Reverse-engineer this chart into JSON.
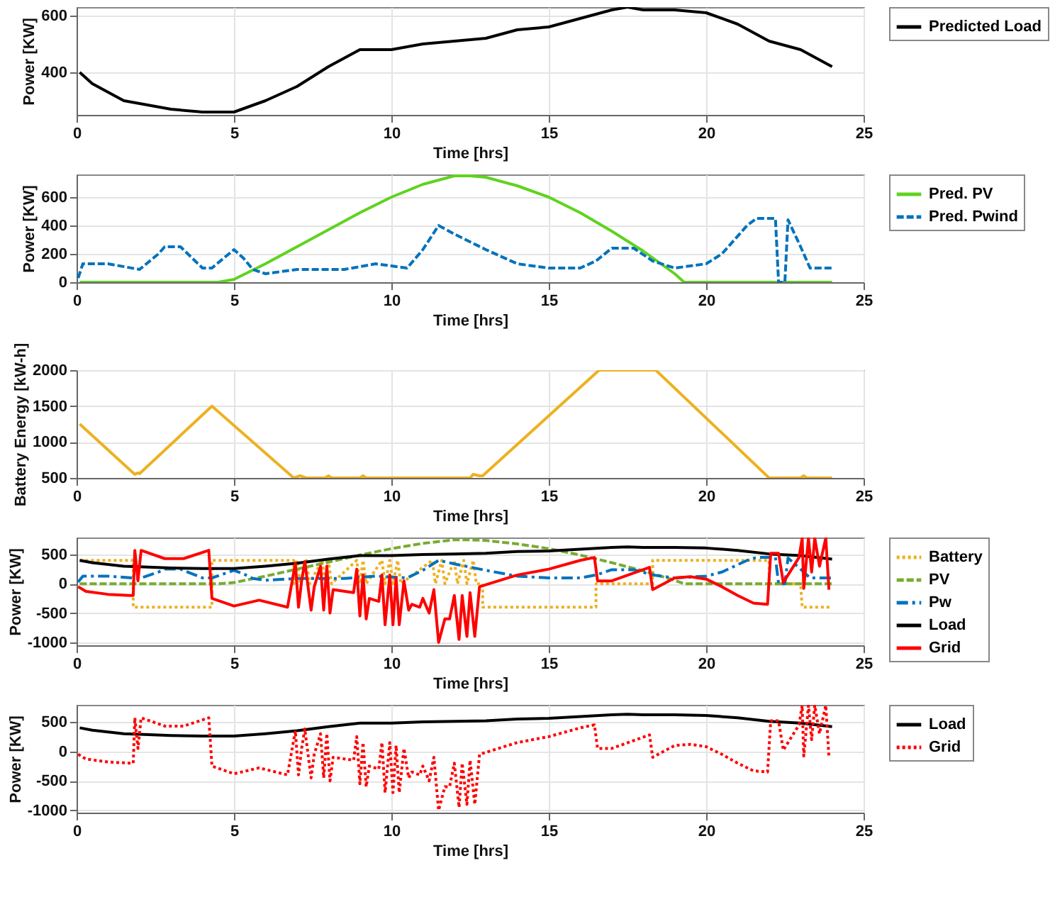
{
  "chart_data": [
    {
      "type": "line",
      "xlabel": "Time [hrs]",
      "ylabel": "Power [KW]",
      "xlim": [
        0,
        25
      ],
      "xticks": [
        0,
        5,
        10,
        15,
        20,
        25
      ],
      "ylim": [
        250,
        630
      ],
      "yticks": [
        400,
        600
      ],
      "grid": true,
      "legend": "right",
      "series": [
        {
          "name": "Predicted Load",
          "color": "#000000",
          "line_style": "solid",
          "x": [
            0.1,
            0.5,
            1,
            1.5,
            2,
            3,
            4,
            4.5,
            5,
            6,
            7,
            8,
            9,
            9.5,
            10,
            11,
            12,
            13,
            14,
            15,
            16,
            17,
            17.5,
            18,
            19,
            20,
            21,
            22,
            23,
            24
          ],
          "values": [
            400,
            360,
            330,
            300,
            290,
            270,
            260,
            260,
            260,
            300,
            350,
            420,
            480,
            480,
            480,
            500,
            510,
            520,
            550,
            560,
            590,
            620,
            630,
            620,
            620,
            610,
            570,
            510,
            480,
            420
          ]
        }
      ]
    },
    {
      "type": "line",
      "xlabel": "Time [hrs]",
      "ylabel": "Power [KW]",
      "xlim": [
        0,
        25
      ],
      "xticks": [
        0,
        5,
        10,
        15,
        20,
        25
      ],
      "ylim": [
        0,
        760
      ],
      "yticks": [
        0,
        200,
        400,
        600
      ],
      "grid": true,
      "legend": "right",
      "series": [
        {
          "name": "Pred. PV",
          "color": "#5fd31f",
          "line_style": "solid",
          "x": [
            0.1,
            4.5,
            5,
            6,
            7,
            8,
            9,
            10,
            11,
            12,
            12.5,
            13,
            14,
            15,
            16,
            17,
            18,
            19,
            19.3,
            24
          ],
          "values": [
            0,
            0,
            20,
            130,
            250,
            370,
            490,
            600,
            690,
            750,
            750,
            740,
            680,
            600,
            490,
            360,
            220,
            60,
            0,
            0
          ]
        },
        {
          "name": "Pred. Pwind",
          "color": "#0072bd",
          "line_style": "dashed",
          "x": [
            0.05,
            0.2,
            1,
            2,
            2.6,
            2.8,
            3.3,
            4,
            4.3,
            5,
            5.3,
            5.6,
            6,
            7,
            8.5,
            9.5,
            10.5,
            11,
            11.5,
            12,
            13,
            14,
            15,
            16,
            16.5,
            17,
            17.7,
            18.3,
            19,
            20,
            20.5,
            21.3,
            21.6,
            22.2,
            22.3,
            22.5,
            22.6,
            23,
            23.3,
            24
          ],
          "values": [
            30,
            130,
            130,
            90,
            200,
            250,
            250,
            100,
            100,
            230,
            170,
            90,
            60,
            90,
            90,
            130,
            100,
            230,
            400,
            340,
            230,
            130,
            100,
            100,
            150,
            240,
            240,
            150,
            100,
            130,
            200,
            400,
            450,
            450,
            0,
            0,
            440,
            250,
            100,
            100
          ]
        }
      ]
    },
    {
      "type": "line",
      "xlabel": "Time [hrs]",
      "ylabel": "Battery Energy [kW-h]",
      "xlim": [
        0,
        25
      ],
      "xticks": [
        0,
        5,
        10,
        15,
        20,
        25
      ],
      "ylim": [
        500,
        2000
      ],
      "yticks": [
        500,
        1000,
        1500,
        2000
      ],
      "grid": true,
      "series": [
        {
          "color": "#edb120",
          "line_style": "solid",
          "x": [
            0.1,
            1.85,
            1.95,
            2.0,
            4.3,
            6.9,
            7.1,
            7.3,
            7.9,
            8.0,
            8.1,
            9.0,
            9.1,
            9.2,
            12.5,
            12.6,
            12.8,
            12.9,
            16.6,
            18.4,
            22,
            23,
            23.1,
            23.2,
            24
          ],
          "values": [
            1250,
            550,
            570,
            560,
            1500,
            500,
            530,
            500,
            500,
            530,
            500,
            500,
            530,
            500,
            500,
            550,
            530,
            530,
            2000,
            2000,
            500,
            500,
            530,
            500,
            500
          ]
        }
      ]
    },
    {
      "type": "line",
      "xlabel": "Time [hrs]",
      "ylabel": "Power [KW]",
      "xlim": [
        0,
        25
      ],
      "xticks": [
        0,
        5,
        10,
        15,
        20,
        25
      ],
      "ylim": [
        -1050,
        790
      ],
      "yticks": [
        -1000,
        -500,
        0,
        500
      ],
      "grid": true,
      "legend": "right",
      "series": [
        {
          "name": "Battery",
          "color": "#edb120",
          "line_style": "dotted",
          "x": [
            0.1,
            1.8,
            1.8,
            4.3,
            4.3,
            6.9,
            6.9,
            7.0,
            7.1,
            7.3,
            7.4,
            7.8,
            7.9,
            8.0,
            8.1,
            8.9,
            9.0,
            9.1,
            9.2,
            9.7,
            9.8,
            9.95,
            10.05,
            10.2,
            10.3,
            11.3,
            11.4,
            11.6,
            11.7,
            12.0,
            12.1,
            12.3,
            12.4,
            12.6,
            12.7,
            12.9,
            12.9,
            16.5,
            16.5,
            18.3,
            18.3,
            22,
            22,
            23,
            23.05,
            24
          ],
          "values": [
            400,
            400,
            -400,
            -400,
            400,
            400,
            0,
            400,
            0,
            400,
            0,
            400,
            0,
            400,
            0,
            400,
            0,
            400,
            0,
            400,
            0,
            400,
            0,
            400,
            0,
            400,
            0,
            400,
            0,
            400,
            0,
            400,
            0,
            400,
            0,
            0,
            -400,
            -400,
            0,
            0,
            400,
            400,
            0,
            0,
            -400,
            -400
          ]
        },
        {
          "name": "PV",
          "color": "#77ac30",
          "line_style": "dashed",
          "x": [
            0.1,
            4.5,
            5,
            6,
            7,
            8,
            9,
            10,
            11,
            12,
            12.5,
            13,
            14,
            15,
            16,
            17,
            18,
            19,
            19.3,
            24
          ],
          "values": [
            0,
            0,
            20,
            130,
            250,
            370,
            490,
            600,
            690,
            750,
            750,
            740,
            680,
            600,
            490,
            360,
            220,
            60,
            0,
            0
          ]
        },
        {
          "name": "Pw",
          "color": "#0072bd",
          "line_style": "dashdot",
          "x": [
            0.05,
            0.2,
            1,
            2,
            2.6,
            2.8,
            3.3,
            4,
            4.3,
            5,
            5.3,
            5.6,
            6,
            7,
            8.5,
            9.5,
            10.5,
            11,
            11.5,
            12,
            13,
            14,
            15,
            16,
            16.5,
            17,
            17.7,
            18.3,
            19,
            20,
            20.5,
            21.3,
            21.6,
            22.2,
            22.3,
            22.5,
            22.6,
            23,
            23.3,
            24
          ],
          "values": [
            30,
            130,
            130,
            90,
            200,
            250,
            250,
            100,
            100,
            230,
            170,
            90,
            60,
            90,
            90,
            130,
            100,
            230,
            400,
            340,
            230,
            130,
            100,
            100,
            150,
            240,
            240,
            150,
            100,
            130,
            200,
            400,
            450,
            450,
            0,
            0,
            440,
            250,
            100,
            100
          ]
        },
        {
          "name": "Load",
          "color": "#000000",
          "line_style": "solid",
          "x": [
            0.1,
            0.5,
            1,
            1.5,
            2,
            3,
            4,
            4.5,
            5,
            6,
            7,
            8,
            9,
            9.5,
            10,
            11,
            12,
            13,
            14,
            15,
            16,
            17,
            17.5,
            18,
            19,
            20,
            21,
            22,
            23,
            24
          ],
          "values": [
            400,
            360,
            330,
            300,
            290,
            270,
            260,
            260,
            260,
            300,
            350,
            420,
            480,
            480,
            480,
            500,
            510,
            520,
            550,
            560,
            590,
            620,
            630,
            620,
            620,
            610,
            570,
            510,
            480,
            420
          ]
        },
        {
          "name": "Grid",
          "color": "#ff0000",
          "line_style": "solid",
          "x": [
            0.05,
            0.3,
            1,
            1.7,
            1.8,
            1.85,
            1.95,
            2.05,
            2.8,
            3.4,
            4.2,
            4.3,
            5,
            5.8,
            6.7,
            6.95,
            7.05,
            7.15,
            7.25,
            7.45,
            7.55,
            7.75,
            7.85,
            7.95,
            8.05,
            8.15,
            8.8,
            8.9,
            9.0,
            9.1,
            9.2,
            9.3,
            9.6,
            9.7,
            9.8,
            9.95,
            10.05,
            10.15,
            10.25,
            10.4,
            10.55,
            10.65,
            10.9,
            11.0,
            11.2,
            11.35,
            11.5,
            11.7,
            11.85,
            12.0,
            12.15,
            12.25,
            12.4,
            12.5,
            12.65,
            12.8,
            14,
            15,
            16,
            16.45,
            16.55,
            17,
            18.2,
            18.3,
            19,
            19.5,
            20,
            20.5,
            21,
            21.5,
            21.95,
            22.05,
            22.3,
            22.45,
            22.6,
            22.95,
            23.05,
            23.1,
            23.25,
            23.35,
            23.45,
            23.6,
            23.8,
            23.9
          ],
          "values": [
            -50,
            -130,
            -180,
            -200,
            -200,
            570,
            50,
            570,
            430,
            430,
            570,
            -250,
            -380,
            -280,
            -400,
            350,
            -400,
            50,
            380,
            -450,
            -50,
            300,
            -450,
            300,
            -500,
            -100,
            -150,
            250,
            -550,
            150,
            -600,
            -250,
            -300,
            150,
            -700,
            150,
            -700,
            100,
            -700,
            50,
            -450,
            -350,
            -400,
            -250,
            -500,
            -100,
            -1000,
            -600,
            -600,
            -200,
            -950,
            -200,
            -900,
            -150,
            -900,
            -50,
            150,
            250,
            400,
            450,
            50,
            50,
            280,
            -100,
            100,
            120,
            80,
            -50,
            -200,
            -330,
            -350,
            520,
            520,
            20,
            150,
            450,
            780,
            -80,
            780,
            200,
            780,
            300,
            780,
            -100
          ]
        }
      ]
    },
    {
      "type": "line",
      "xlabel": "Time [hrs]",
      "ylabel": "Power [KW]",
      "xlim": [
        0,
        25
      ],
      "xticks": [
        0,
        5,
        10,
        15,
        20,
        25
      ],
      "ylim": [
        -1040,
        790
      ],
      "yticks": [
        -1000,
        -500,
        0,
        500
      ],
      "grid": true,
      "legend": "right",
      "series": [
        {
          "name": "Load",
          "color": "#000000",
          "line_style": "solid",
          "x": [
            0.1,
            0.5,
            1,
            1.5,
            2,
            3,
            4,
            4.5,
            5,
            6,
            7,
            8,
            9,
            9.5,
            10,
            11,
            12,
            13,
            14,
            15,
            16,
            17,
            17.5,
            18,
            19,
            20,
            21,
            22,
            23,
            24
          ],
          "values": [
            400,
            360,
            330,
            300,
            290,
            270,
            260,
            260,
            260,
            300,
            350,
            420,
            480,
            480,
            480,
            500,
            510,
            520,
            550,
            560,
            590,
            620,
            630,
            620,
            620,
            610,
            570,
            510,
            480,
            420
          ]
        },
        {
          "name": "Grid",
          "color": "#ff0000",
          "line_style": "dotted",
          "x": [
            0.05,
            0.3,
            1,
            1.7,
            1.8,
            1.85,
            1.95,
            2.05,
            2.8,
            3.4,
            4.2,
            4.3,
            5,
            5.8,
            6.7,
            6.95,
            7.05,
            7.15,
            7.25,
            7.45,
            7.55,
            7.75,
            7.85,
            7.95,
            8.05,
            8.15,
            8.8,
            8.9,
            9.0,
            9.1,
            9.2,
            9.3,
            9.6,
            9.7,
            9.8,
            9.95,
            10.05,
            10.15,
            10.25,
            10.4,
            10.55,
            10.65,
            10.9,
            11.0,
            11.2,
            11.35,
            11.5,
            11.7,
            11.85,
            12.0,
            12.15,
            12.25,
            12.4,
            12.5,
            12.65,
            12.8,
            14,
            15,
            16,
            16.45,
            16.55,
            17,
            18.2,
            18.3,
            19,
            19.5,
            20,
            20.5,
            21,
            21.5,
            21.95,
            22.05,
            22.3,
            22.45,
            22.6,
            22.95,
            23.05,
            23.1,
            23.25,
            23.35,
            23.45,
            23.6,
            23.8,
            23.9
          ],
          "values": [
            -50,
            -130,
            -180,
            -200,
            -200,
            570,
            50,
            570,
            430,
            430,
            570,
            -250,
            -380,
            -280,
            -400,
            350,
            -400,
            50,
            380,
            -450,
            -50,
            300,
            -450,
            300,
            -500,
            -100,
            -150,
            250,
            -550,
            150,
            -600,
            -250,
            -300,
            150,
            -700,
            150,
            -700,
            100,
            -700,
            50,
            -450,
            -350,
            -400,
            -250,
            -500,
            -100,
            -1000,
            -600,
            -600,
            -200,
            -950,
            -200,
            -900,
            -150,
            -900,
            -50,
            150,
            250,
            400,
            450,
            50,
            50,
            280,
            -100,
            100,
            120,
            80,
            -50,
            -200,
            -330,
            -350,
            520,
            520,
            20,
            150,
            450,
            780,
            -80,
            780,
            200,
            780,
            300,
            780,
            -100
          ]
        }
      ]
    }
  ]
}
